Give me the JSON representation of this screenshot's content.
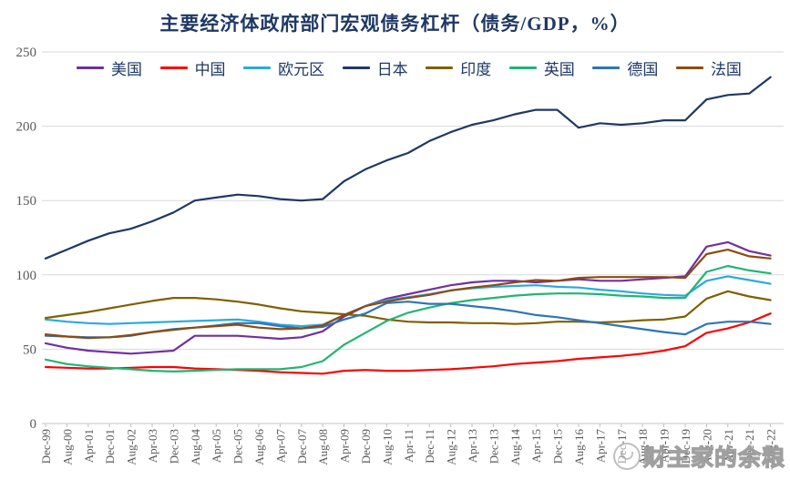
{
  "watermark": {
    "text": "财主家的余粮",
    "icon": "round-cartoon-logo"
  },
  "chart_data": {
    "type": "line",
    "title": "主要经济体政府部门宏观债务杠杆（债务/GDP，%）",
    "xlabel": "",
    "ylabel": "",
    "ylim": [
      0,
      250
    ],
    "yticks": [
      0,
      50,
      100,
      150,
      200,
      250
    ],
    "grid": true,
    "legend_position": "top",
    "categories": [
      "Dec-99",
      "Aug-00",
      "Apr-01",
      "Dec-01",
      "Aug-02",
      "Apr-03",
      "Dec-03",
      "Aug-04",
      "Apr-05",
      "Dec-05",
      "Aug-06",
      "Apr-07",
      "Dec-07",
      "Aug-08",
      "Apr-09",
      "Dec-09",
      "Aug-10",
      "Apr-11",
      "Dec-11",
      "Aug-12",
      "Apr-13",
      "Dec-13",
      "Aug-14",
      "Apr-15",
      "Dec-15",
      "Aug-16",
      "Apr-17",
      "Dec-17",
      "Aug-18",
      "Apr-19",
      "Dec-19",
      "Aug-20",
      "Apr-21",
      "Dec-21",
      "Aug-22"
    ],
    "series": [
      {
        "name": "美国",
        "color": "#7030A0",
        "values": [
          54,
          51,
          49,
          48,
          47,
          48,
          49,
          59,
          59,
          59,
          58,
          57,
          58,
          62,
          72,
          79,
          84,
          87,
          90,
          93,
          95,
          96,
          96,
          95,
          96,
          97,
          96,
          96,
          97,
          98,
          99,
          119,
          122,
          116,
          113
        ]
      },
      {
        "name": "中国",
        "color": "#FF0000",
        "values": [
          38,
          37.5,
          37,
          37,
          37.5,
          38,
          38,
          37,
          36.5,
          36,
          35.5,
          34.5,
          34,
          33.5,
          35.5,
          36,
          35.5,
          35.5,
          36,
          36.5,
          37.5,
          38.5,
          40,
          41,
          42,
          43.5,
          44.5,
          45.5,
          47,
          49,
          52,
          61,
          64,
          68,
          74
        ]
      },
      {
        "name": "欧元区",
        "color": "#29ABDE",
        "values": [
          70,
          68.5,
          67.5,
          67,
          67.5,
          68,
          68.5,
          69,
          69.5,
          70,
          68.5,
          66.5,
          65.5,
          66.5,
          73,
          79,
          83,
          85,
          87,
          89.5,
          91,
          92,
          92.5,
          93,
          92,
          91.5,
          90,
          89,
          87.5,
          86.5,
          86,
          96,
          99,
          96.5,
          94
        ]
      },
      {
        "name": "日本",
        "color": "#1F3864",
        "values": [
          111,
          117,
          123,
          128,
          131,
          136,
          142,
          150,
          152,
          154,
          153,
          151,
          150,
          151,
          163,
          171,
          177,
          182,
          190,
          196,
          201,
          204,
          208,
          211,
          211,
          199,
          202,
          201,
          202,
          204,
          204,
          218,
          221,
          222,
          233
        ]
      },
      {
        "name": "印度",
        "color": "#7F6000",
        "values": [
          71,
          73,
          75,
          77.5,
          80,
          82.5,
          84.5,
          84.5,
          83.5,
          82,
          80,
          77.5,
          75.5,
          74.5,
          73.5,
          72.5,
          70,
          68.5,
          68,
          68,
          67.5,
          67.5,
          67,
          67.5,
          68.5,
          68.5,
          68,
          68.5,
          69.5,
          70,
          72,
          84,
          89,
          85.5,
          83
        ]
      },
      {
        "name": "英国",
        "color": "#21B573",
        "values": [
          43,
          40,
          38.5,
          37.5,
          36.5,
          35.5,
          35,
          35.5,
          36,
          36.5,
          36.5,
          36.5,
          38,
          42,
          53,
          61,
          69,
          74.5,
          78,
          81,
          83,
          84.5,
          86,
          87,
          87.5,
          87.5,
          87,
          86,
          85.5,
          84.5,
          84.5,
          102,
          106,
          103,
          101
        ]
      },
      {
        "name": "德国",
        "color": "#2E75B6",
        "values": [
          59,
          58.5,
          58,
          58,
          59,
          61.5,
          63.5,
          64.5,
          66,
          67.5,
          67.5,
          65.5,
          64,
          65,
          70,
          74,
          81,
          82,
          80.5,
          80.5,
          79,
          77.5,
          75.5,
          73,
          71.5,
          69.5,
          67.5,
          65.5,
          63.5,
          61.5,
          60,
          67,
          68.5,
          68.5,
          67
        ]
      },
      {
        "name": "法国",
        "color": "#8C4B10",
        "values": [
          60,
          58.5,
          57.5,
          58,
          59.5,
          61.5,
          63,
          64.5,
          65.5,
          66.5,
          64.5,
          63.5,
          64,
          66,
          73,
          79,
          82,
          84.5,
          86.5,
          89.5,
          91.5,
          93,
          95,
          96.5,
          96,
          98,
          98.5,
          98.5,
          98.5,
          98.5,
          98,
          114,
          117,
          112.5,
          111
        ]
      }
    ]
  }
}
